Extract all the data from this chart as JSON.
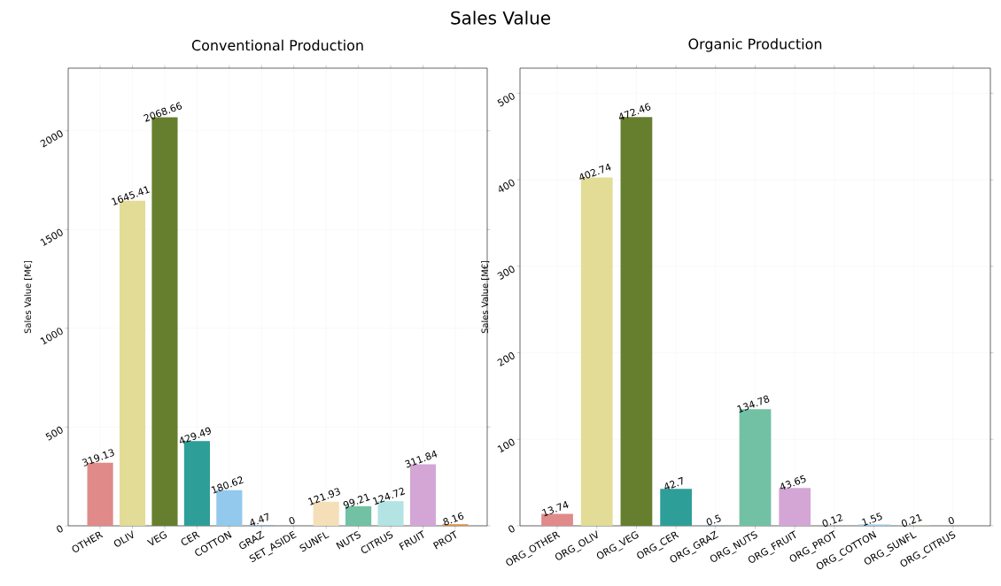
{
  "chart_data": [
    {
      "type": "bar",
      "title": "Sales Value",
      "subtitle": "Conventional Production",
      "ylabel": "Sales Value [M€]",
      "categories": [
        "OTHER",
        "OLIV",
        "VEG",
        "CER",
        "COTTON",
        "GRAZ",
        "SET_ASIDE",
        "SUNFL",
        "NUTS",
        "CITRUS",
        "FRUIT",
        "PROT"
      ],
      "values": [
        319.13,
        1645.41,
        2068.66,
        429.49,
        180.62,
        4.47,
        0,
        121.93,
        99.21,
        124.72,
        311.84,
        8.16
      ],
      "colors": [
        "#e08a8a",
        "#e2dc96",
        "#667f2e",
        "#2e9e98",
        "#93c9ec",
        "#8fb0c8",
        "#cccccc",
        "#f5dfb8",
        "#72c1a5",
        "#b3e3e3",
        "#d4a6d6",
        "#e0904a"
      ],
      "ylim": [
        0,
        2317
      ],
      "yticks": [
        0,
        500,
        1000,
        1500,
        2000
      ],
      "grid": true,
      "data_labels": true
    },
    {
      "type": "bar",
      "title": "Organic Production",
      "ylabel": "Sales Value [M€]",
      "categories": [
        "ORG_OTHER",
        "ORG_OLIV",
        "ORG_VEG",
        "ORG_CER",
        "ORG_GRAZ",
        "ORG_NUTS",
        "ORG_FRUIT",
        "ORG_PROT",
        "ORG_COTTON",
        "ORG_SUNFL",
        "ORG_CITRUS"
      ],
      "values": [
        13.74,
        402.74,
        472.46,
        42.7,
        0.5,
        134.78,
        43.65,
        0.12,
        1.55,
        0.21,
        0
      ],
      "colors": [
        "#e08a8a",
        "#e2dc96",
        "#667f2e",
        "#2e9e98",
        "#8fb0c8",
        "#72c1a5",
        "#d4a6d6",
        "#e0904a",
        "#93c9ec",
        "#f5dfb8",
        "#b3e3e3"
      ],
      "ylim": [
        0,
        529
      ],
      "yticks": [
        0,
        100,
        200,
        300,
        400,
        500
      ],
      "grid": true,
      "data_labels": true
    }
  ]
}
